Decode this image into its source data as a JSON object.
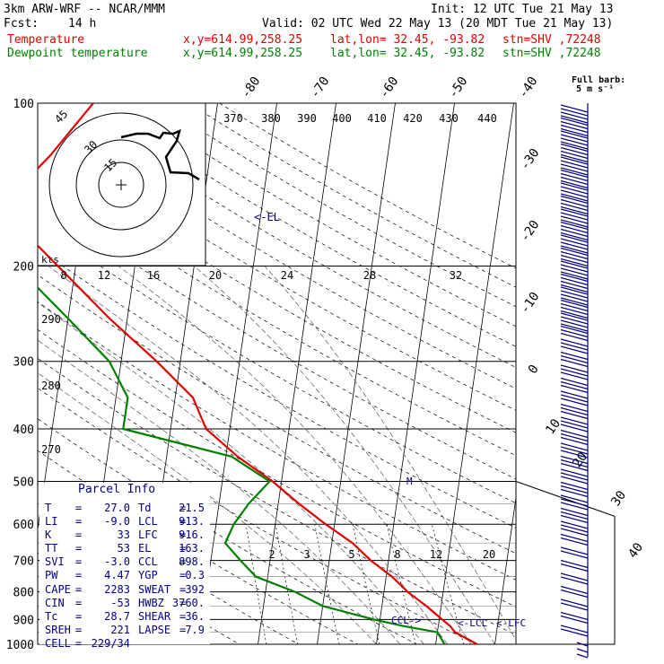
{
  "header": {
    "model": "3km ARW-WRF -- NCAR/MMM",
    "init": "Init: 12 UTC Tue 21 May 13",
    "fcst_label": "Fcst:",
    "fcst_value": "14 h",
    "valid": "Valid: 02 UTC Wed 22 May 13 (20 MDT Tue 21 May 13)",
    "temp_label": "Temperature",
    "dew_label": "Dewpoint temperature",
    "xy": "x,y=614.99,258.25",
    "latlon": "lat,lon= 32.45, -93.82",
    "stn": "stn=SHV ,72248",
    "colors": {
      "temperature": "#e00000",
      "dewpoint": "#008000",
      "barbs": "#000080"
    }
  },
  "barb_legend": {
    "title": "Full barb:",
    "value": "5 m s⁻¹"
  },
  "hodograph": {
    "axis_label": "kts",
    "ring_labels": [
      "15",
      "30",
      "45"
    ],
    "x_ticks": [
      "8",
      "12",
      "16",
      "20",
      "24",
      "28",
      "32"
    ]
  },
  "markers": {
    "el": "<-EL",
    "ccl": "CCL->",
    "lcl": "<-LCL",
    "lfc": "<-LFC",
    "m": "M"
  },
  "mixing_ratio_labels": [
    "2",
    "3",
    "5",
    "8",
    "12",
    "20"
  ],
  "parcel": {
    "title": "Parcel Info",
    "rows": [
      {
        "k1": "T",
        "v1": "27.0",
        "k2": "Td",
        "v2": "21.5"
      },
      {
        "k1": "LI",
        "v1": "-9.0",
        "k2": "LCL",
        "v2": "913."
      },
      {
        "k1": "K",
        "v1": "33",
        "k2": "LFC",
        "v2": "916."
      },
      {
        "k1": "TT",
        "v1": "53",
        "k2": "EL",
        "v2": "163."
      },
      {
        "k1": "SVI",
        "v1": "-3.0",
        "k2": "CCL",
        "v2": "898."
      },
      {
        "k1": "PW",
        "v1": "4.47",
        "k2": "YGP",
        "v2": "0.3"
      },
      {
        "k1": "CAPE",
        "v1": "2283",
        "k2": "SWEAT",
        "v2": "392"
      },
      {
        "k1": "CIN",
        "v1": "-53",
        "k2": "HWBZ",
        "v2": "3760."
      },
      {
        "k1": "Tc",
        "v1": "28.7",
        "k2": "SHEAR",
        "v2": "36."
      },
      {
        "k1": "SREH",
        "v1": "221",
        "k2": "LAPSE",
        "v2": "7.9"
      },
      {
        "k1": "CELL",
        "v1": "229/34",
        "k2": "",
        "v2": ""
      }
    ]
  },
  "chart_data": {
    "type": "line",
    "title": "",
    "y_axis": {
      "scale": "log-pressure",
      "ylim": [
        1000,
        100
      ],
      "ticks": [
        100,
        200,
        300,
        400,
        500,
        600,
        700,
        800,
        900,
        1000
      ]
    },
    "isotherm_labels": [
      "-80",
      "-70",
      "-60",
      "-50",
      "-40",
      "-30",
      "-20",
      "-10",
      "0",
      "10",
      "20",
      "30",
      "40"
    ],
    "theta_labels_top": [
      "370",
      "380",
      "390",
      "400",
      "410",
      "420",
      "430",
      "440"
    ],
    "theta_labels_left": [
      "290",
      "280",
      "270"
    ],
    "series": [
      {
        "name": "Temperature",
        "pressure": [
          1000,
          950,
          925,
          900,
          850,
          800,
          750,
          700,
          650,
          600,
          550,
          500,
          450,
          400,
          350,
          300,
          250,
          200,
          175,
          150,
          125,
          100
        ],
        "values": [
          27,
          23,
          22,
          20.5,
          17.5,
          14,
          11,
          7,
          3.5,
          -1.5,
          -6.5,
          -11.5,
          -18,
          -24,
          -27,
          -34,
          -43,
          -53,
          -59,
          -63,
          -57,
          -51
        ]
      },
      {
        "name": "Dewpoint temperature",
        "pressure": [
          1000,
          950,
          925,
          900,
          850,
          800,
          750,
          700,
          650,
          600,
          550,
          500,
          450,
          400,
          350,
          300,
          250,
          200,
          175,
          150,
          125,
          100
        ],
        "values": [
          21.5,
          20,
          14,
          9,
          0,
          -5,
          -12,
          -15,
          -18,
          -17,
          -15,
          -12,
          -19,
          -38,
          -38,
          -42,
          -50,
          -60,
          -71,
          -83,
          -80,
          -70
        ]
      }
    ]
  }
}
